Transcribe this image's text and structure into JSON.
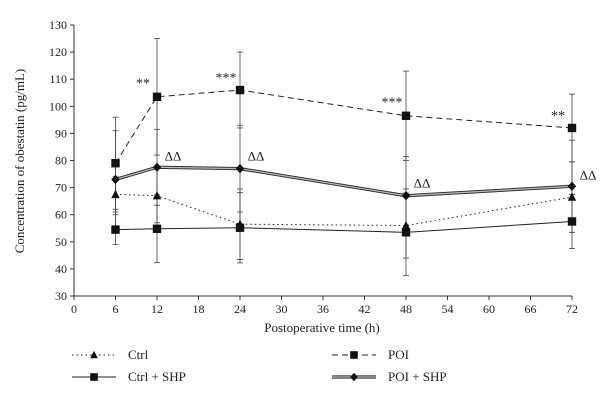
{
  "chart_data": {
    "type": "line",
    "xlabel": "Postoperative time (h)",
    "ylabel": "Concentration of obestatin (pg/mL)",
    "xlim": [
      0,
      72
    ],
    "ylim": [
      30,
      130
    ],
    "xticks": [
      0,
      6,
      12,
      18,
      24,
      30,
      36,
      42,
      48,
      54,
      60,
      66,
      72
    ],
    "yticks": [
      30,
      40,
      50,
      60,
      70,
      80,
      90,
      100,
      110,
      120,
      130
    ],
    "x": [
      6,
      12,
      24,
      48,
      72
    ],
    "grid": false,
    "legend_position": "bottom",
    "series": [
      {
        "name": "Ctrl",
        "line_style": "dotted",
        "marker": "triangle",
        "values": [
          67.5,
          67,
          56.5,
          56,
          66.5
        ],
        "error": [
          6.5,
          10,
          13,
          12,
          13
        ]
      },
      {
        "name": "POI",
        "line_style": "dashed",
        "marker": "square",
        "values": [
          79,
          103.5,
          106,
          96.5,
          92
        ],
        "error": [
          17,
          21.5,
          14,
          16.5,
          12.5
        ]
      },
      {
        "name": "Ctrl + SHP",
        "line_style": "solid",
        "marker": "square",
        "values": [
          54.5,
          54.8,
          55.2,
          53.5,
          57.5
        ],
        "error": [
          5.5,
          12.5,
          13,
          16,
          10
        ]
      },
      {
        "name": "POI + SHP",
        "line_style": "double",
        "marker": "diamond",
        "values": [
          73,
          77.5,
          77,
          67,
          70.5
        ],
        "error": [
          18,
          14,
          16,
          14.5,
          17
        ]
      }
    ],
    "annotations": [
      {
        "text": "**",
        "x": 12,
        "y": 107
      },
      {
        "text": "***",
        "x": 24,
        "y": 109
      },
      {
        "text": "***",
        "x": 48,
        "y": 100
      },
      {
        "text": "**",
        "x": 72,
        "y": 95
      },
      {
        "text": "ΔΔ",
        "x": 12,
        "y": 80
      },
      {
        "text": "ΔΔ",
        "x": 24,
        "y": 80
      },
      {
        "text": "ΔΔ",
        "x": 48,
        "y": 70
      },
      {
        "text": "ΔΔ",
        "x": 72,
        "y": 73
      }
    ]
  }
}
